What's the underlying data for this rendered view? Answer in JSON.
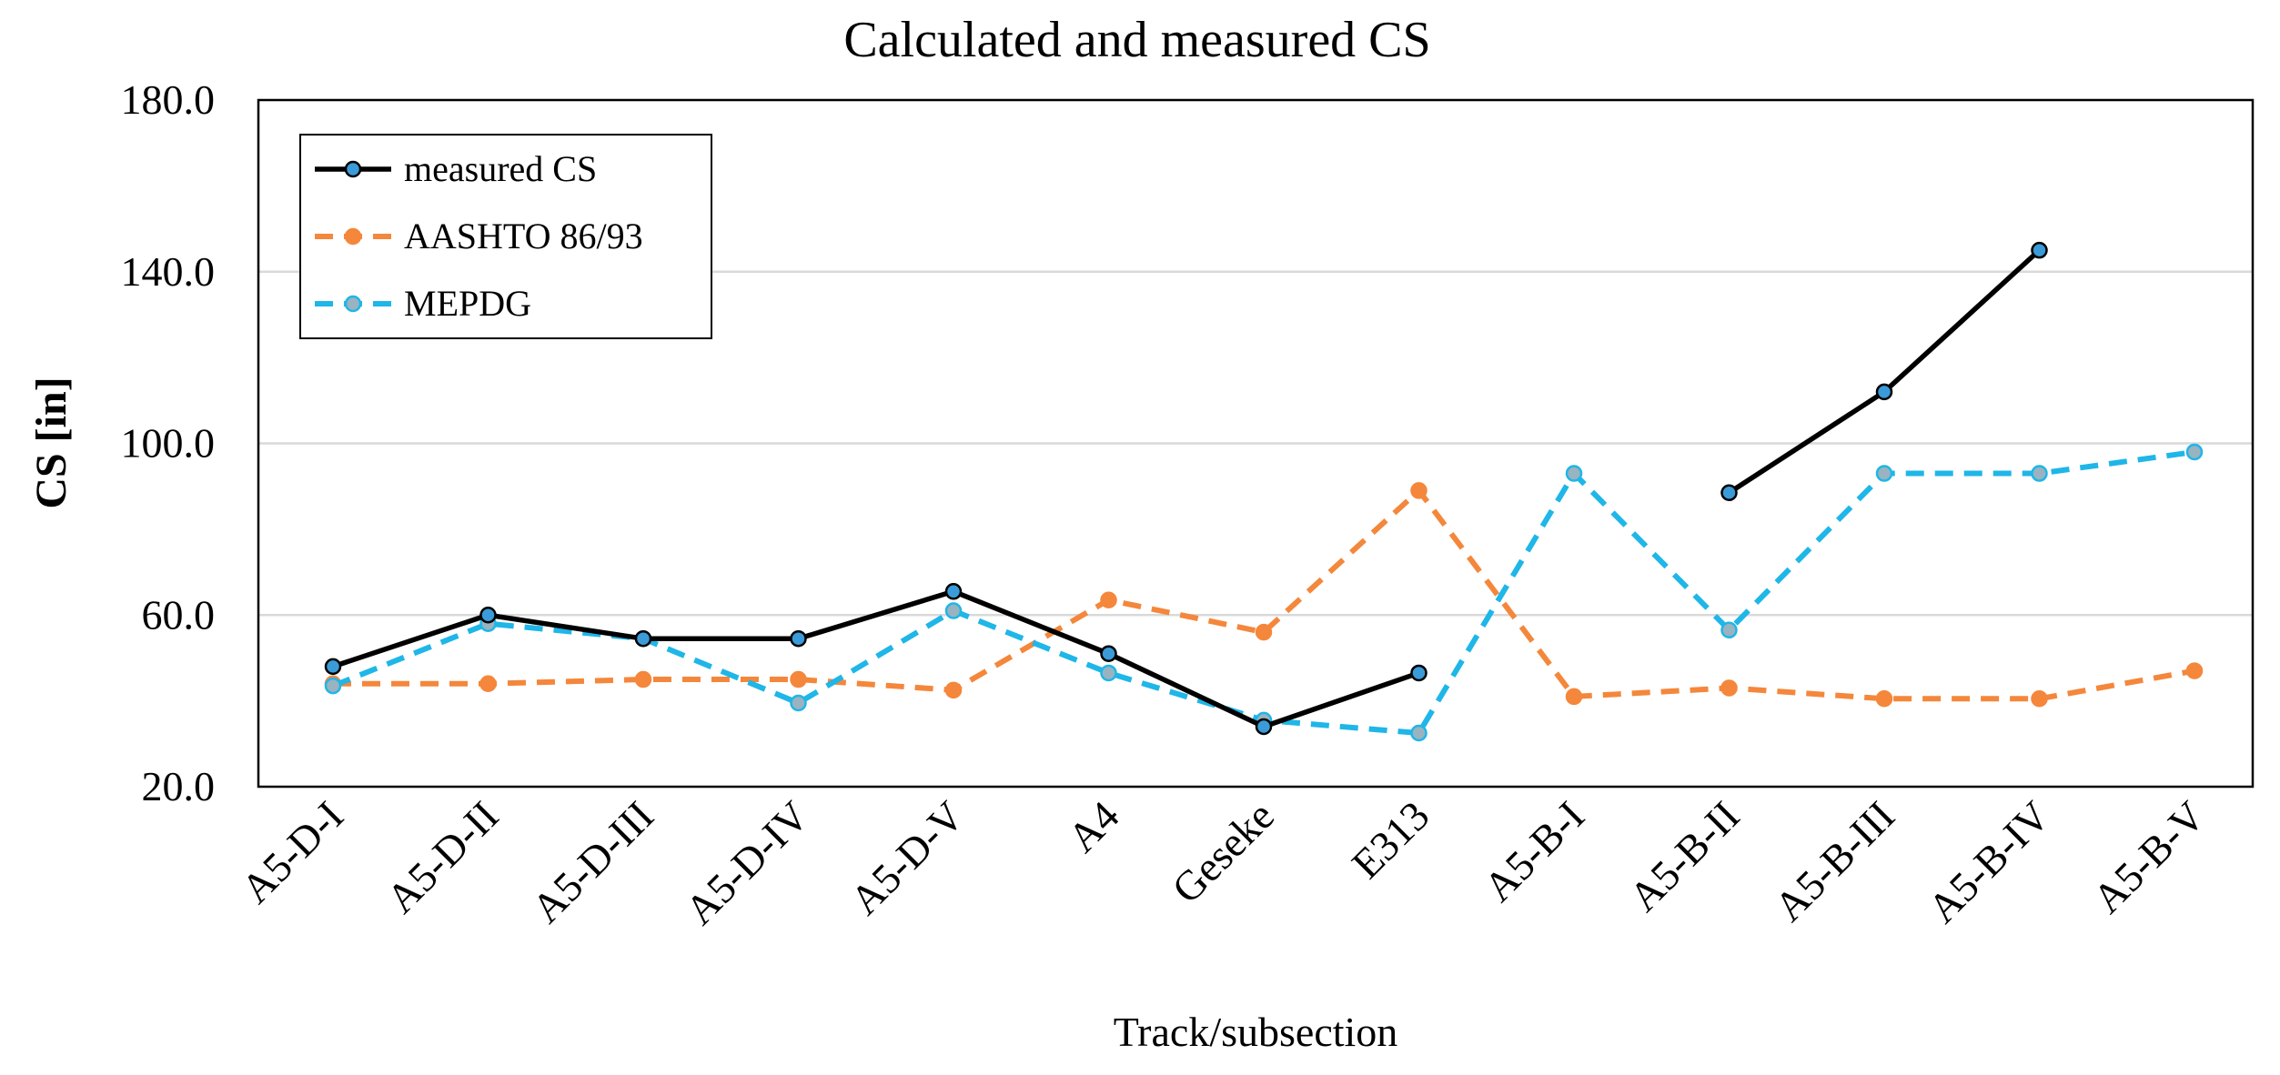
{
  "chart_data": {
    "type": "line",
    "title": "Calculated and measured CS",
    "xlabel": "Track/subsection",
    "ylabel": "CS [in]",
    "ylim": [
      20,
      180
    ],
    "yticks": [
      "20.0",
      "60.0",
      "100.0",
      "140.0",
      "180.0"
    ],
    "ytick_values": [
      20,
      60,
      100,
      140,
      180
    ],
    "grid": true,
    "legend_position": "top-left",
    "categories": [
      "A5-D-I",
      "A5-D-II",
      "A5-D-III",
      "A5-D-IV",
      "A5-D-V",
      "A4",
      "Geseke",
      "E313",
      "A5-B-I",
      "A5-B-II",
      "A5-B-III",
      "A5-B-IV",
      "A5-B-V"
    ],
    "series": [
      {
        "name": "measured CS",
        "color": "#000000",
        "marker_color": "#3a9bd8",
        "dashed": false,
        "values": [
          48,
          60,
          54.5,
          54.5,
          65.5,
          51,
          34,
          46.5,
          null,
          88.5,
          112,
          145,
          null
        ]
      },
      {
        "name": "AASHTO 86/93",
        "color": "#f4873b",
        "marker_color": "#f4873b",
        "dashed": true,
        "values": [
          44,
          44,
          45,
          45,
          42.5,
          63.5,
          56,
          89,
          41,
          43,
          40.5,
          40.5,
          47
        ]
      },
      {
        "name": "MEPDG",
        "color": "#1fb6e8",
        "marker_color": "#9ab3c0",
        "dashed": true,
        "values": [
          43.5,
          58,
          54.5,
          39.5,
          61,
          46.5,
          35.5,
          32.5,
          93,
          56.5,
          93,
          93,
          98
        ]
      }
    ]
  }
}
